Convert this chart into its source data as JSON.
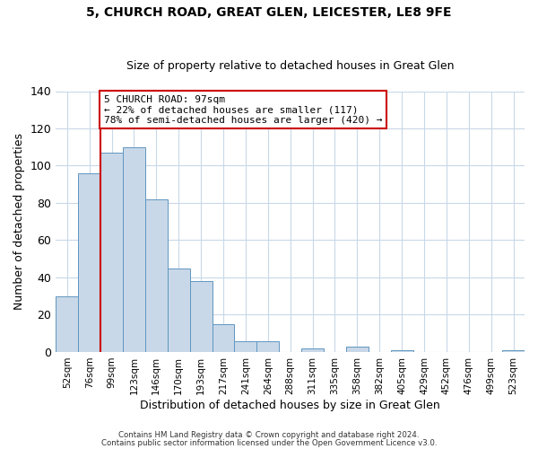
{
  "title": "5, CHURCH ROAD, GREAT GLEN, LEICESTER, LE8 9FE",
  "subtitle": "Size of property relative to detached houses in Great Glen",
  "xlabel": "Distribution of detached houses by size in Great Glen",
  "ylabel": "Number of detached properties",
  "bar_labels": [
    "52sqm",
    "76sqm",
    "99sqm",
    "123sqm",
    "146sqm",
    "170sqm",
    "193sqm",
    "217sqm",
    "241sqm",
    "264sqm",
    "288sqm",
    "311sqm",
    "335sqm",
    "358sqm",
    "382sqm",
    "405sqm",
    "429sqm",
    "452sqm",
    "476sqm",
    "499sqm",
    "523sqm"
  ],
  "bar_values": [
    30,
    96,
    107,
    110,
    82,
    45,
    38,
    15,
    6,
    6,
    0,
    2,
    0,
    3,
    0,
    1,
    0,
    0,
    0,
    0,
    1
  ],
  "bar_color": "#c8d8e8",
  "bar_edge_color": "#6096c0",
  "vline_color": "#cc0000",
  "annotation_line1": "5 CHURCH ROAD: 97sqm",
  "annotation_line2": "← 22% of detached houses are smaller (117)",
  "annotation_line3": "78% of semi-detached houses are larger (420) →",
  "annotation_box_color": "#ffffff",
  "annotation_box_edge": "#cc0000",
  "ylim": [
    0,
    140
  ],
  "yticks": [
    0,
    20,
    40,
    60,
    80,
    100,
    120,
    140
  ],
  "footer_line1": "Contains HM Land Registry data © Crown copyright and database right 2024.",
  "footer_line2": "Contains public sector information licensed under the Open Government Licence v3.0.",
  "background_color": "#ffffff",
  "grid_color": "#c8d8e8",
  "title_fontsize": 10,
  "subtitle_fontsize": 9
}
